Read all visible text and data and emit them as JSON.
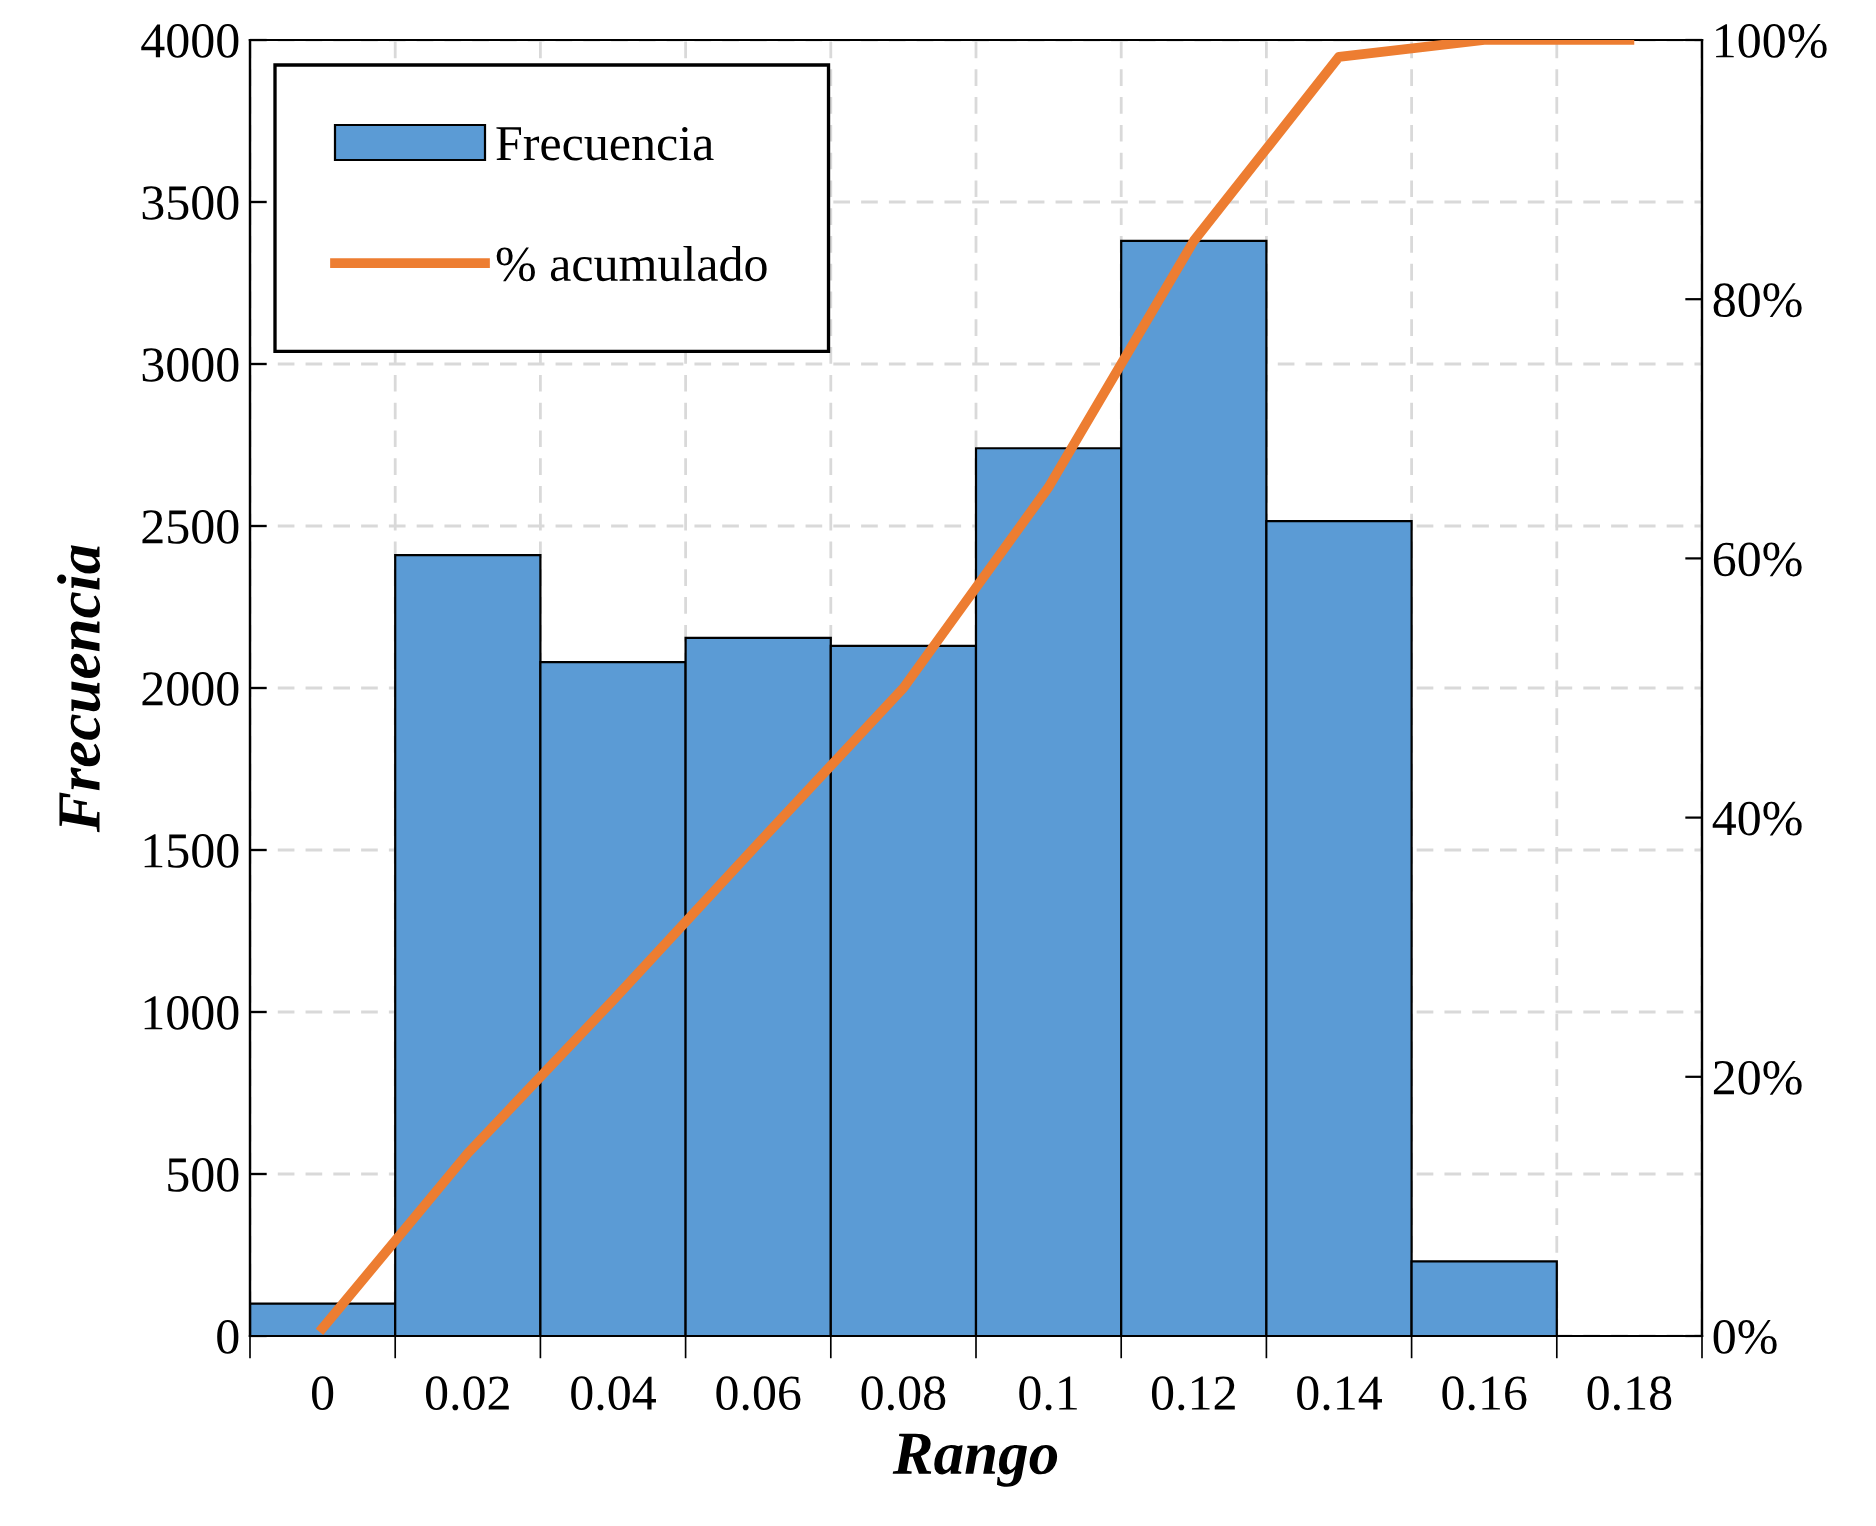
{
  "chart_data": {
    "type": "bar",
    "xlabel": "Rango",
    "ylabel": "Frecuencia",
    "categories": [
      "0",
      "0.02",
      "0.04",
      "0.06",
      "0.08",
      "0.1",
      "0.12",
      "0.14",
      "0.16",
      "0.18"
    ],
    "series": [
      {
        "name": "Frecuencia",
        "color": "#5b9bd5",
        "values": [
          100,
          2410,
          2080,
          2155,
          2130,
          2740,
          3380,
          2515,
          230,
          0
        ]
      },
      {
        "name": "% acumulado",
        "type": "line",
        "axis": "y2",
        "color": "#ed7d31",
        "values": [
          0.6,
          14.1,
          25.9,
          38.0,
          50.0,
          65.5,
          84.5,
          98.7,
          100,
          100
        ]
      }
    ],
    "ylim": [
      0,
      4000
    ],
    "yticks": [
      0,
      500,
      1000,
      1500,
      2000,
      2500,
      3000,
      3500,
      4000
    ],
    "y2lim": [
      0,
      100
    ],
    "y2ticks": [
      {
        "value": 0,
        "label": "0%"
      },
      {
        "value": 20,
        "label": "20%"
      },
      {
        "value": 40,
        "label": "40%"
      },
      {
        "value": 60,
        "label": "60%"
      },
      {
        "value": 80,
        "label": "80%"
      },
      {
        "value": 100,
        "label": "100%"
      }
    ],
    "grid": true,
    "legend": "top left",
    "marker": "none",
    "line_style": "solid"
  }
}
